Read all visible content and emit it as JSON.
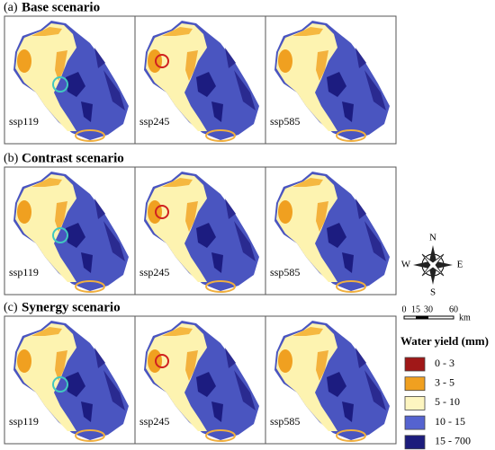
{
  "rows": [
    {
      "label": "(a)",
      "title": "Base scenario",
      "panels": [
        "ssp119",
        "ssp245",
        "ssp585"
      ]
    },
    {
      "label": "(b)",
      "title": "Contrast scenario",
      "panels": [
        "ssp119",
        "ssp245",
        "ssp585"
      ]
    },
    {
      "label": "(c)",
      "title": "Synergy scenario",
      "panels": [
        "ssp119",
        "ssp245",
        "ssp585"
      ]
    }
  ],
  "compass": {
    "north": "N",
    "south": "S",
    "east": "E",
    "west": "W"
  },
  "scale_bar": {
    "labels": [
      "0",
      "15",
      "30",
      "60"
    ],
    "unit": "km"
  },
  "legend": {
    "title": "Water yield (mm)",
    "items": [
      {
        "label": "0 - 3",
        "color": "#a01818"
      },
      {
        "label": "3 - 5",
        "color": "#f0a020"
      },
      {
        "label": "5 - 10",
        "color": "#fdf5c0"
      },
      {
        "label": "10 - 15",
        "color": "#5563d0"
      },
      {
        "label": "15 - 700",
        "color": "#1c1c7c"
      }
    ]
  }
}
